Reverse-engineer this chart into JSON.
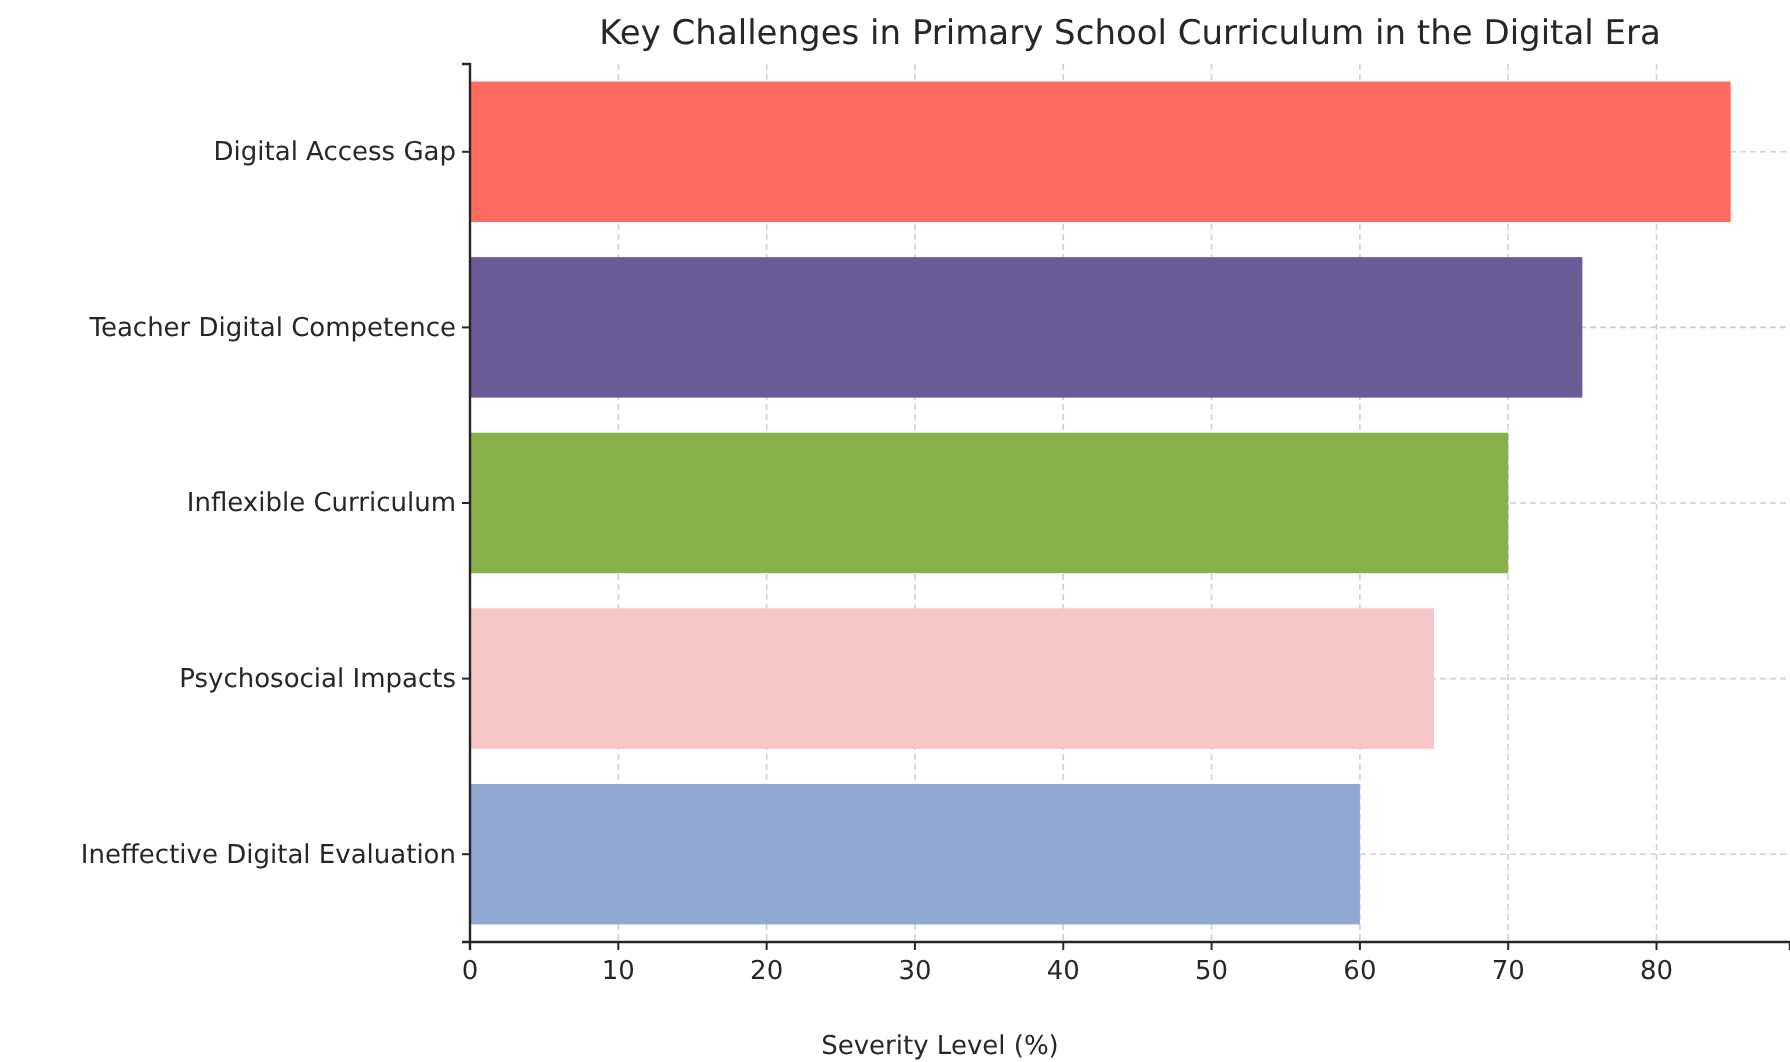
{
  "chart_data": {
    "type": "bar",
    "orientation": "horizontal",
    "title": "Key Challenges in Primary School Curriculum in the Digital Era",
    "xlabel": "Severity Level (%)",
    "categories": [
      "Digital Access Gap",
      "Teacher Digital Competence",
      "Inflexible Curriculum",
      "Psychosocial Impacts",
      "Ineffective Digital Evaluation"
    ],
    "values": [
      85,
      75,
      70,
      65,
      60
    ],
    "colors": [
      "#ff6b61",
      "#6a5a95",
      "#88b04b",
      "#f7c6c7",
      "#91a8d2"
    ],
    "xlim": [
      0,
      89
    ],
    "xticks": [
      0,
      10,
      20,
      30,
      40,
      50,
      60,
      70,
      80
    ],
    "grid": true
  }
}
